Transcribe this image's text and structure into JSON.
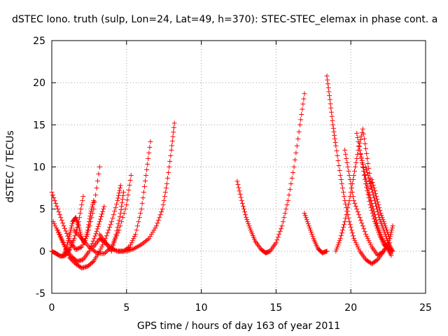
{
  "chart_data": {
    "type": "scatter",
    "title": "dSTEC Iono. truth (sulp, Lon=24, Lat=49, h=370): STEC-STEC_elemax in phase cont. a",
    "xlabel": "GPS time / hours of day 163 of year 2011",
    "ylabel": "dSTEC  / TECUs",
    "xlim": [
      0,
      25
    ],
    "ylim": [
      -5,
      25
    ],
    "x_ticks": [
      0,
      5,
      10,
      15,
      20,
      25
    ],
    "y_ticks": [
      -5,
      0,
      5,
      10,
      15,
      20,
      25
    ],
    "grid": true,
    "marker": "+",
    "marker_color": "#ff0000",
    "series_arcs": [
      {
        "x": [
          0.0,
          0.4,
          0.8,
          1.2,
          1.6,
          2.0,
          2.4,
          2.8,
          3.2
        ],
        "y": [
          7.0,
          5.0,
          3.0,
          1.2,
          0.2,
          0.5,
          2.0,
          5.0,
          10.0
        ]
      },
      {
        "x": [
          0.0,
          0.3,
          0.6,
          0.9,
          1.2,
          1.5,
          1.8,
          2.1
        ],
        "y": [
          0.0,
          -0.3,
          -0.6,
          -0.5,
          0.2,
          1.5,
          3.5,
          6.5
        ]
      },
      {
        "x": [
          0.1,
          0.5,
          0.9,
          1.3,
          1.7,
          2.1,
          2.5,
          2.9,
          3.2,
          3.5
        ],
        "y": [
          3.5,
          2.0,
          0.5,
          -0.6,
          -1.2,
          -1.0,
          0.0,
          1.8,
          3.5,
          5.3
        ]
      },
      {
        "x": [
          0.4,
          0.8,
          1.2,
          1.6,
          2.0,
          2.4,
          2.8,
          3.2,
          3.6,
          4.0,
          4.4,
          4.6
        ],
        "y": [
          2.5,
          0.8,
          -0.8,
          -1.5,
          -2.0,
          -1.8,
          -1.2,
          0.0,
          1.5,
          3.5,
          6.0,
          7.8
        ]
      },
      {
        "x": [
          0.8,
          1.0,
          1.2,
          1.4,
          1.6,
          1.8,
          2.0,
          2.2,
          2.4,
          2.6,
          2.8
        ],
        "y": [
          -0.5,
          0.5,
          2.0,
          3.5,
          4.0,
          3.0,
          1.5,
          1.0,
          2.5,
          4.5,
          6.0
        ]
      },
      {
        "x": [
          1.5,
          2.0,
          2.5,
          3.0,
          3.5,
          4.0,
          4.5,
          5.0,
          5.3
        ],
        "y": [
          2.5,
          1.5,
          0.5,
          -0.2,
          -0.3,
          0.5,
          2.5,
          5.5,
          9.0
        ]
      },
      {
        "x": [
          2.8,
          3.2,
          3.6,
          4.0,
          4.3,
          4.6,
          4.8
        ],
        "y": [
          0.5,
          1.5,
          1.0,
          0.0,
          2.0,
          4.5,
          7.0
        ]
      },
      {
        "x": [
          3.2,
          3.6,
          4.0,
          4.4,
          4.8,
          5.2,
          5.6,
          6.0,
          6.3,
          6.6
        ],
        "y": [
          2.0,
          1.0,
          0.3,
          0.0,
          0.0,
          0.5,
          2.0,
          5.0,
          9.0,
          13.0
        ]
      },
      {
        "x": [
          4.4,
          5.0,
          5.5,
          6.0,
          6.5,
          7.0,
          7.4,
          7.7,
          8.0,
          8.2
        ],
        "y": [
          0.0,
          0.0,
          0.3,
          0.8,
          1.5,
          3.0,
          5.0,
          8.0,
          12.0,
          15.2
        ]
      },
      {
        "x": [
          12.4,
          12.7,
          13.0,
          13.3,
          13.6,
          14.0,
          14.3,
          14.6,
          15.0,
          15.4,
          15.8,
          16.2,
          16.6,
          16.9
        ],
        "y": [
          8.3,
          6.0,
          4.0,
          2.5,
          1.2,
          0.2,
          -0.2,
          0.0,
          1.0,
          3.0,
          6.0,
          10.0,
          15.0,
          18.7
        ]
      },
      {
        "x": [
          16.9,
          17.2,
          17.5,
          17.8,
          18.1,
          18.4
        ],
        "y": [
          4.5,
          3.0,
          1.5,
          0.3,
          -0.2,
          0.0
        ]
      },
      {
        "x": [
          18.4,
          18.6,
          18.8,
          19.0,
          19.3,
          19.6,
          19.9,
          20.2,
          20.6,
          21.0,
          21.4,
          21.8,
          22.2,
          22.6,
          22.8
        ],
        "y": [
          20.8,
          18.0,
          15.0,
          12.5,
          9.0,
          6.0,
          3.5,
          1.5,
          0.0,
          -1.0,
          -1.5,
          -1.0,
          0.0,
          1.5,
          3.0
        ]
      },
      {
        "x": [
          19.0,
          19.3,
          19.6,
          19.9,
          20.2,
          20.5,
          20.8,
          21.1,
          21.4
        ],
        "y": [
          0.0,
          1.5,
          3.5,
          6.0,
          9.0,
          12.0,
          14.5,
          11.0,
          7.5
        ]
      },
      {
        "x": [
          19.6,
          19.9,
          20.2,
          20.6,
          21.0,
          21.4,
          21.8,
          22.2,
          22.6
        ],
        "y": [
          12.0,
          9.0,
          6.0,
          4.0,
          2.0,
          0.5,
          -0.5,
          0.0,
          1.0
        ]
      },
      {
        "x": [
          20.4,
          20.7,
          21.0,
          21.3,
          21.6,
          21.9,
          22.2,
          22.5,
          22.8
        ],
        "y": [
          14.0,
          11.0,
          8.0,
          5.5,
          3.5,
          2.0,
          0.8,
          0.3,
          0.0
        ]
      },
      {
        "x": [
          20.6,
          20.9,
          21.2,
          21.5,
          21.8,
          22.1,
          22.4,
          22.7
        ],
        "y": [
          12.0,
          9.5,
          7.0,
          5.0,
          3.0,
          1.5,
          0.5,
          -0.5
        ]
      },
      {
        "x": [
          21.0,
          21.3,
          21.6,
          21.9,
          22.2,
          22.5,
          22.8
        ],
        "y": [
          10.0,
          8.0,
          6.0,
          4.0,
          2.5,
          1.0,
          0.0
        ]
      },
      {
        "x": [
          21.4,
          21.7,
          22.0,
          22.3,
          22.6
        ],
        "y": [
          8.5,
          6.5,
          4.5,
          3.0,
          1.5
        ]
      }
    ]
  }
}
